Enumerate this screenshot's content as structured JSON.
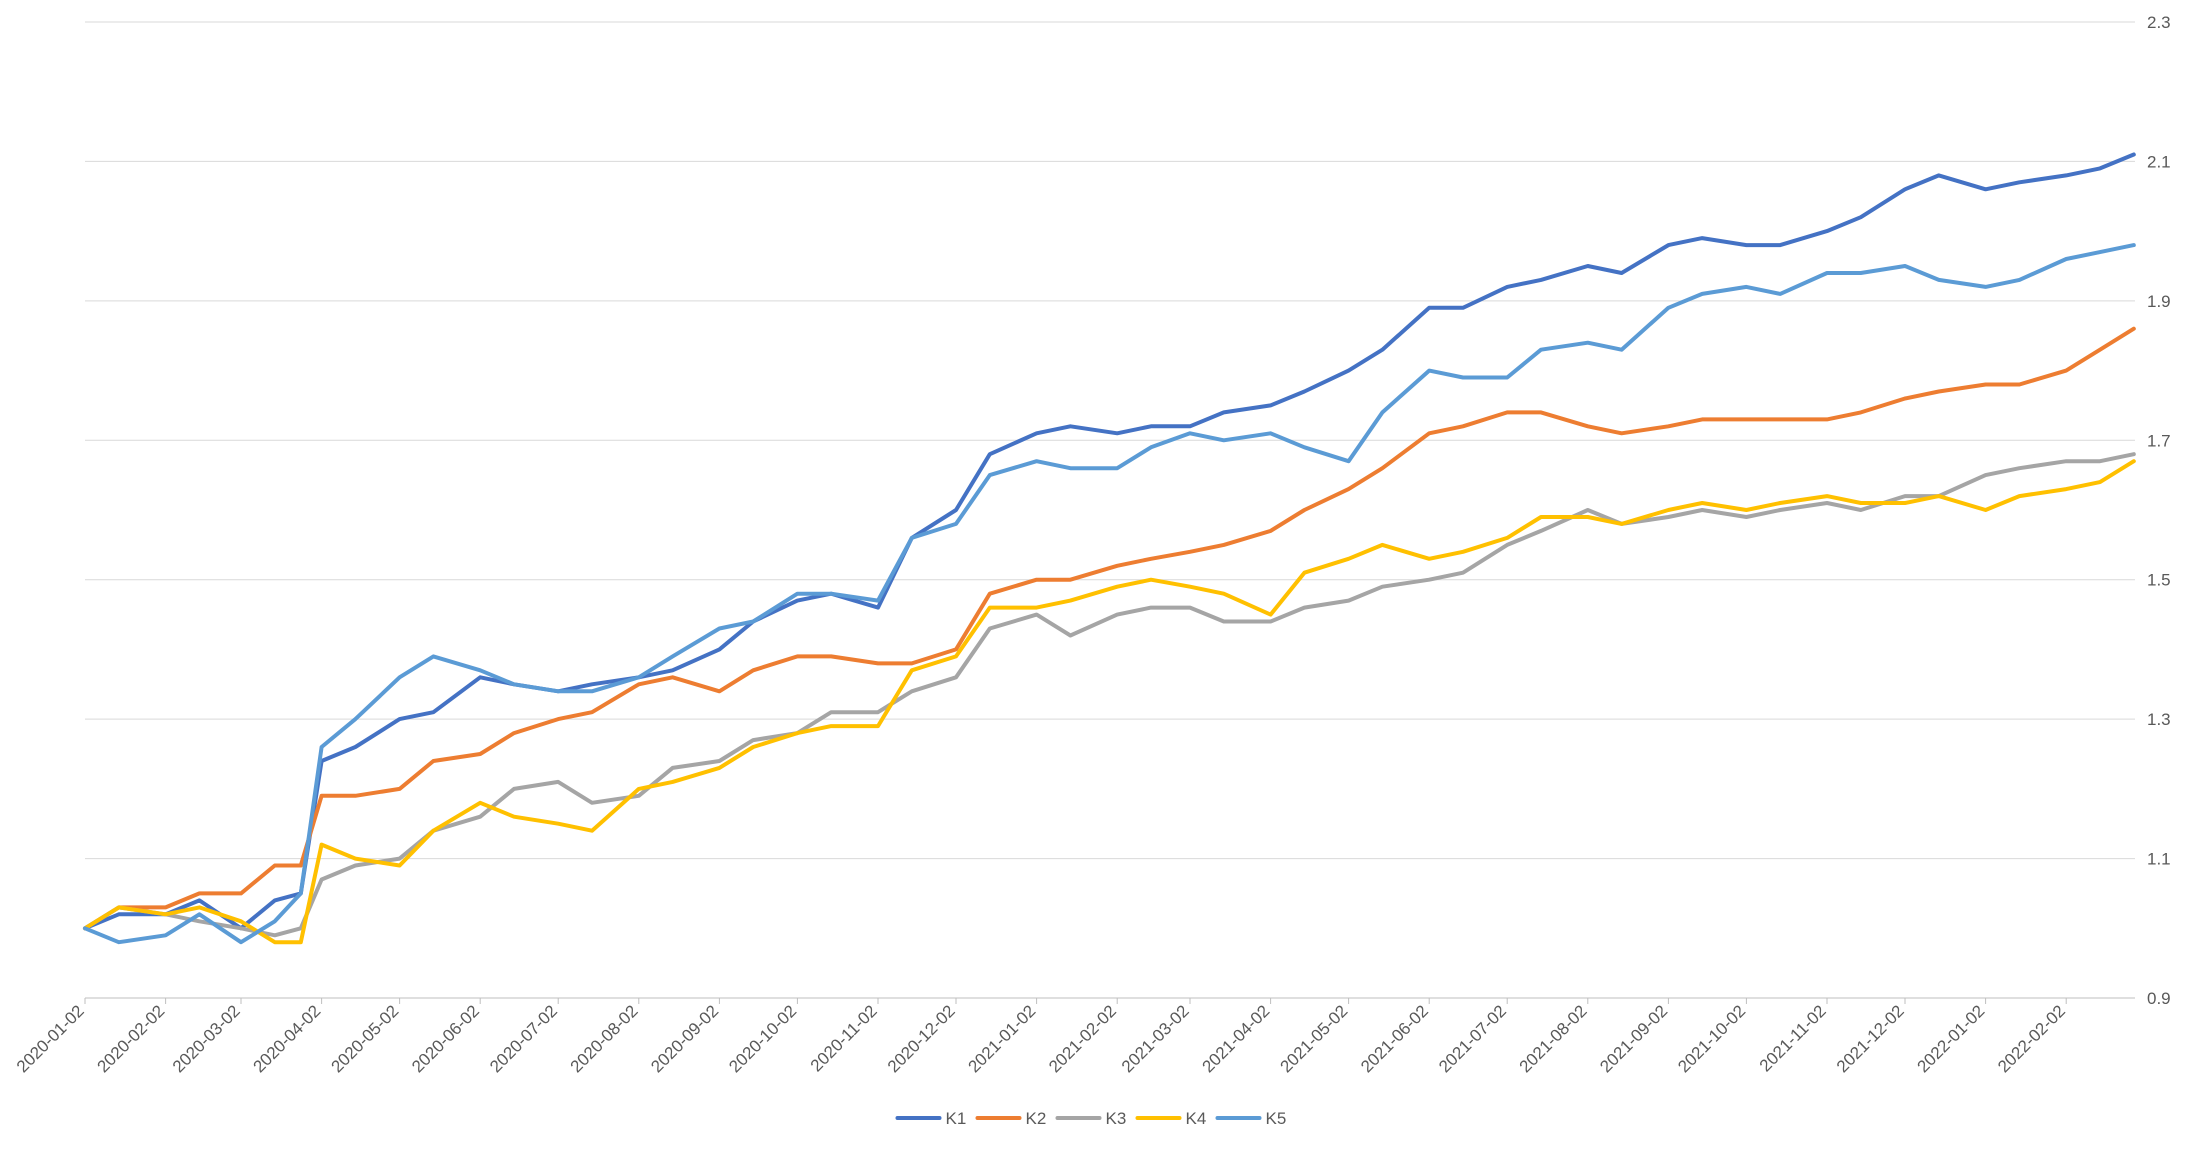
{
  "chart_data": {
    "type": "line",
    "y_axis_position": "right",
    "ylim": [
      0.9,
      2.3
    ],
    "y_ticks": [
      "0.9",
      "1.1",
      "1.3",
      "1.5",
      "1.7",
      "1.9",
      "2.1",
      "2.3"
    ],
    "grid": "horizontal",
    "legend_position": "bottom",
    "x_ticks": [
      "2020-01-02",
      "2020-02-02",
      "2020-03-02",
      "2020-04-02",
      "2020-05-02",
      "2020-06-02",
      "2020-07-02",
      "2020-08-02",
      "2020-09-02",
      "2020-10-02",
      "2020-11-02",
      "2020-12-02",
      "2021-01-02",
      "2021-02-02",
      "2021-03-02",
      "2021-04-02",
      "2021-05-02",
      "2021-06-02",
      "2021-07-02",
      "2021-08-02",
      "2021-09-02",
      "2021-10-02",
      "2021-11-02",
      "2021-12-02",
      "2022-01-02",
      "2022-02-02"
    ],
    "x": [
      "2020-01-02",
      "2020-01-15",
      "2020-02-02",
      "2020-02-15",
      "2020-03-02",
      "2020-03-15",
      "2020-03-25",
      "2020-04-02",
      "2020-04-15",
      "2020-05-02",
      "2020-05-15",
      "2020-06-02",
      "2020-06-15",
      "2020-07-02",
      "2020-07-15",
      "2020-08-02",
      "2020-08-15",
      "2020-09-02",
      "2020-09-15",
      "2020-10-02",
      "2020-10-15",
      "2020-11-02",
      "2020-11-15",
      "2020-12-02",
      "2020-12-15",
      "2021-01-02",
      "2021-01-15",
      "2021-02-02",
      "2021-02-15",
      "2021-03-02",
      "2021-03-15",
      "2021-04-02",
      "2021-04-15",
      "2021-05-02",
      "2021-05-15",
      "2021-06-02",
      "2021-06-15",
      "2021-07-02",
      "2021-07-15",
      "2021-08-02",
      "2021-08-15",
      "2021-09-02",
      "2021-09-15",
      "2021-10-02",
      "2021-10-15",
      "2021-11-02",
      "2021-11-15",
      "2021-12-02",
      "2021-12-15",
      "2022-01-02",
      "2022-01-15",
      "2022-02-02",
      "2022-02-15",
      "2022-02-28"
    ],
    "series": [
      {
        "name": "K1",
        "color": "#4472C4",
        "values": [
          1.0,
          1.02,
          1.02,
          1.04,
          1.0,
          1.04,
          1.05,
          1.24,
          1.26,
          1.3,
          1.31,
          1.36,
          1.35,
          1.34,
          1.35,
          1.36,
          1.37,
          1.4,
          1.44,
          1.47,
          1.48,
          1.46,
          1.56,
          1.6,
          1.68,
          1.71,
          1.72,
          1.71,
          1.72,
          1.72,
          1.74,
          1.75,
          1.77,
          1.8,
          1.83,
          1.89,
          1.89,
          1.92,
          1.93,
          1.95,
          1.94,
          1.98,
          1.99,
          1.98,
          1.98,
          2.0,
          2.02,
          2.06,
          2.08,
          2.06,
          2.07,
          2.08,
          2.09,
          2.11
        ]
      },
      {
        "name": "K2",
        "color": "#ED7D31",
        "values": [
          1.0,
          1.03,
          1.03,
          1.05,
          1.05,
          1.09,
          1.09,
          1.19,
          1.19,
          1.2,
          1.24,
          1.25,
          1.28,
          1.3,
          1.31,
          1.35,
          1.36,
          1.34,
          1.37,
          1.39,
          1.39,
          1.38,
          1.38,
          1.4,
          1.48,
          1.5,
          1.5,
          1.52,
          1.53,
          1.54,
          1.55,
          1.57,
          1.6,
          1.63,
          1.66,
          1.71,
          1.72,
          1.74,
          1.74,
          1.72,
          1.71,
          1.72,
          1.73,
          1.73,
          1.73,
          1.73,
          1.74,
          1.76,
          1.77,
          1.78,
          1.78,
          1.8,
          1.83,
          1.86
        ]
      },
      {
        "name": "K3",
        "color": "#A5A5A5",
        "values": [
          1.0,
          1.03,
          1.02,
          1.01,
          1.0,
          0.99,
          1.0,
          1.07,
          1.09,
          1.1,
          1.14,
          1.16,
          1.2,
          1.21,
          1.18,
          1.19,
          1.23,
          1.24,
          1.27,
          1.28,
          1.31,
          1.31,
          1.34,
          1.36,
          1.43,
          1.45,
          1.42,
          1.45,
          1.46,
          1.46,
          1.44,
          1.44,
          1.46,
          1.47,
          1.49,
          1.5,
          1.51,
          1.55,
          1.57,
          1.6,
          1.58,
          1.59,
          1.6,
          1.59,
          1.6,
          1.61,
          1.6,
          1.62,
          1.62,
          1.65,
          1.66,
          1.67,
          1.67,
          1.68
        ]
      },
      {
        "name": "K4",
        "color": "#FFC000",
        "values": [
          1.0,
          1.03,
          1.02,
          1.03,
          1.01,
          0.98,
          0.98,
          1.12,
          1.1,
          1.09,
          1.14,
          1.18,
          1.16,
          1.15,
          1.14,
          1.2,
          1.21,
          1.23,
          1.26,
          1.28,
          1.29,
          1.29,
          1.37,
          1.39,
          1.46,
          1.46,
          1.47,
          1.49,
          1.5,
          1.49,
          1.48,
          1.45,
          1.51,
          1.53,
          1.55,
          1.53,
          1.54,
          1.56,
          1.59,
          1.59,
          1.58,
          1.6,
          1.61,
          1.6,
          1.61,
          1.62,
          1.61,
          1.61,
          1.62,
          1.6,
          1.62,
          1.63,
          1.64,
          1.67
        ]
      },
      {
        "name": "K5",
        "color": "#5B9BD5",
        "values": [
          1.0,
          0.98,
          0.99,
          1.02,
          0.98,
          1.01,
          1.05,
          1.26,
          1.3,
          1.36,
          1.39,
          1.37,
          1.35,
          1.34,
          1.34,
          1.36,
          1.39,
          1.43,
          1.44,
          1.48,
          1.48,
          1.47,
          1.56,
          1.58,
          1.65,
          1.67,
          1.66,
          1.66,
          1.69,
          1.71,
          1.7,
          1.71,
          1.69,
          1.67,
          1.74,
          1.8,
          1.79,
          1.79,
          1.83,
          1.84,
          1.83,
          1.89,
          1.91,
          1.92,
          1.91,
          1.94,
          1.94,
          1.95,
          1.93,
          1.92,
          1.93,
          1.96,
          1.97,
          1.98
        ]
      }
    ]
  }
}
